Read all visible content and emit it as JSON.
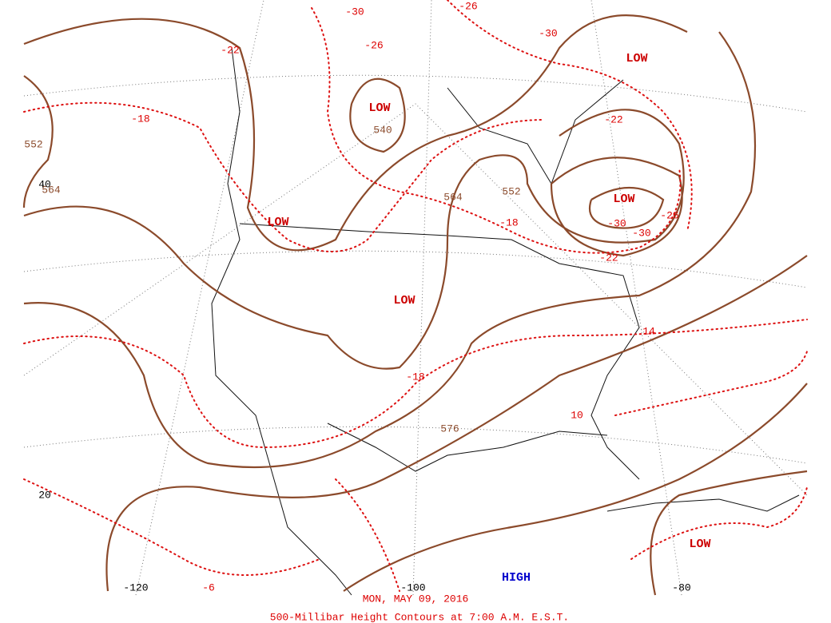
{
  "centers": [
    "LOW",
    "LOW",
    "LOW",
    "LOW",
    "LOW",
    "LOW",
    "HIGH"
  ],
  "height_labels": [
    "552",
    "540",
    "564",
    "552",
    "576",
    "564"
  ],
  "temperature_labels": [
    "-30",
    "-26",
    "-30",
    "-22",
    "-26",
    "-18",
    "-22",
    "-18",
    "-30",
    "-30",
    "-26",
    "-22",
    "-18",
    "14",
    "10",
    "-6"
  ],
  "grid_labels": [
    "40",
    "20",
    "-120",
    "-100",
    "-80"
  ],
  "date": "MON, MAY 09, 2016",
  "title": "500-Millibar Height Contours at 7:00 A.M. E.S.T."
}
